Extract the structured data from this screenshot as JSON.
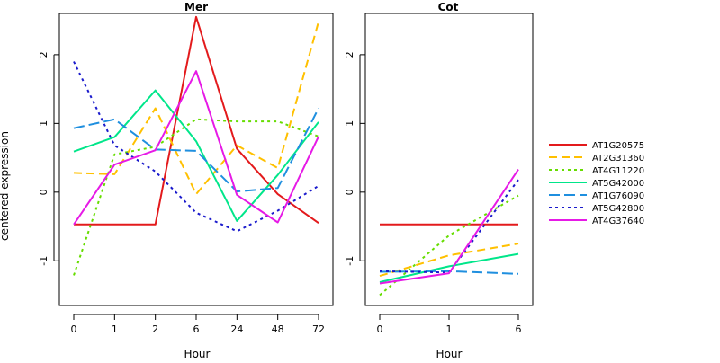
{
  "page": {
    "background": "#ffffff"
  },
  "chart_data": [
    {
      "type": "line",
      "title": "Mer",
      "xlabel": "Hour",
      "ylabel": "centered expression",
      "categories": [
        "0",
        "1",
        "2",
        "6",
        "24",
        "48",
        "72"
      ],
      "ylim": [
        -1.65,
        2.6
      ],
      "yticks": [
        -1,
        0,
        1,
        2
      ],
      "grid": false,
      "series": [
        {
          "name": "AT1G20575",
          "color": "#e31a1c",
          "dash": "solid",
          "values": [
            -0.47,
            -0.47,
            -0.47,
            2.55,
            0.63,
            -0.03,
            -0.45
          ]
        },
        {
          "name": "AT2G31360",
          "color": "#ffc000",
          "dash": "dashed",
          "values": [
            0.28,
            0.26,
            1.22,
            -0.03,
            0.68,
            0.35,
            2.48
          ]
        },
        {
          "name": "AT4G11220",
          "color": "#66dd00",
          "dash": "dotted",
          "values": [
            -1.21,
            0.55,
            0.66,
            1.06,
            1.03,
            1.03,
            0.81
          ]
        },
        {
          "name": "AT5G42000",
          "color": "#00e68a",
          "dash": "solid",
          "values": [
            0.59,
            0.8,
            1.48,
            0.74,
            -0.42,
            0.25,
            1.02
          ]
        },
        {
          "name": "AT1G76090",
          "color": "#1f8fdf",
          "dash": "longdash",
          "values": [
            0.93,
            1.06,
            0.62,
            0.6,
            0.01,
            0.06,
            1.22
          ]
        },
        {
          "name": "AT5G42800",
          "color": "#1a1acc",
          "dash": "dotted",
          "values": [
            1.9,
            0.68,
            0.3,
            -0.3,
            -0.57,
            -0.27,
            0.09
          ]
        },
        {
          "name": "AT4G37640",
          "color": "#e61ae6",
          "dash": "solid",
          "values": [
            -0.47,
            0.4,
            0.61,
            1.76,
            -0.04,
            -0.44,
            0.81
          ]
        }
      ]
    },
    {
      "type": "line",
      "title": "Cot",
      "xlabel": "Hour",
      "ylabel": "",
      "categories": [
        "0",
        "1",
        "6"
      ],
      "ylim": [
        -1.65,
        2.6
      ],
      "yticks": [
        -1,
        0,
        1,
        2
      ],
      "grid": false,
      "series": [
        {
          "name": "AT1G20575",
          "color": "#e31a1c",
          "dash": "solid",
          "values": [
            -0.47,
            -0.47,
            -0.47
          ]
        },
        {
          "name": "AT2G31360",
          "color": "#ffc000",
          "dash": "dashed",
          "values": [
            -1.22,
            -0.92,
            -0.75
          ]
        },
        {
          "name": "AT4G11220",
          "color": "#66dd00",
          "dash": "dotted",
          "values": [
            -1.5,
            -0.63,
            -0.05
          ]
        },
        {
          "name": "AT5G42000",
          "color": "#00e68a",
          "dash": "solid",
          "values": [
            -1.31,
            -1.08,
            -0.9
          ]
        },
        {
          "name": "AT1G76090",
          "color": "#1f8fdf",
          "dash": "longdash",
          "values": [
            -1.16,
            -1.15,
            -1.19
          ]
        },
        {
          "name": "AT5G42800",
          "color": "#1a1acc",
          "dash": "dotted",
          "values": [
            -1.15,
            -1.17,
            0.18
          ]
        },
        {
          "name": "AT4G37640",
          "color": "#e61ae6",
          "dash": "solid",
          "values": [
            -1.33,
            -1.18,
            0.33
          ]
        }
      ]
    }
  ],
  "legend": {
    "placement": "right",
    "entries": [
      {
        "label": "AT1G20575",
        "color": "#e31a1c",
        "dash": "solid"
      },
      {
        "label": "AT2G31360",
        "color": "#ffc000",
        "dash": "dashed"
      },
      {
        "label": "AT4G11220",
        "color": "#66dd00",
        "dash": "dotted"
      },
      {
        "label": "AT5G42000",
        "color": "#00e68a",
        "dash": "solid"
      },
      {
        "label": "AT1G76090",
        "color": "#1f8fdf",
        "dash": "longdash"
      },
      {
        "label": "AT5G42800",
        "color": "#1a1acc",
        "dash": "dotted"
      },
      {
        "label": "AT4G37640",
        "color": "#e61ae6",
        "dash": "solid"
      }
    ]
  }
}
